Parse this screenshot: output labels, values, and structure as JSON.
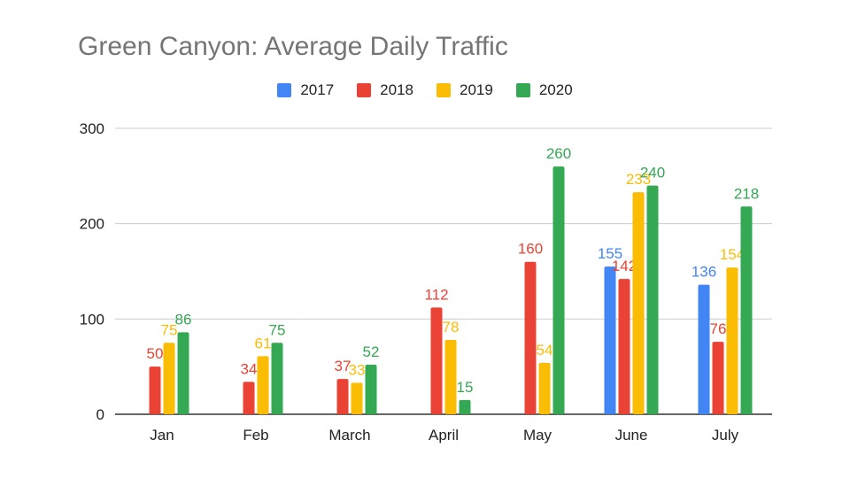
{
  "chart_data": {
    "type": "bar",
    "title": "Green Canyon: Average Daily Traffic",
    "xlabel": "",
    "ylabel": "",
    "categories": [
      "Jan",
      "Feb",
      "March",
      "April",
      "May",
      "June",
      "July"
    ],
    "series": [
      {
        "name": "2017",
        "color": "#4285F4",
        "values": [
          null,
          null,
          null,
          null,
          null,
          155,
          136
        ]
      },
      {
        "name": "2018",
        "color": "#EA4335",
        "values": [
          50,
          34,
          37,
          112,
          160,
          142,
          76
        ]
      },
      {
        "name": "2019",
        "color": "#FBBC04",
        "values": [
          75,
          61,
          33,
          78,
          54,
          233,
          154
        ]
      },
      {
        "name": "2020",
        "color": "#34A853",
        "values": [
          86,
          75,
          52,
          15,
          260,
          240,
          218
        ]
      }
    ],
    "ylim": [
      0,
      300
    ],
    "yticks": [
      0,
      100,
      200,
      300
    ],
    "grid": true,
    "legend_position": "top-center",
    "data_labels": true
  }
}
